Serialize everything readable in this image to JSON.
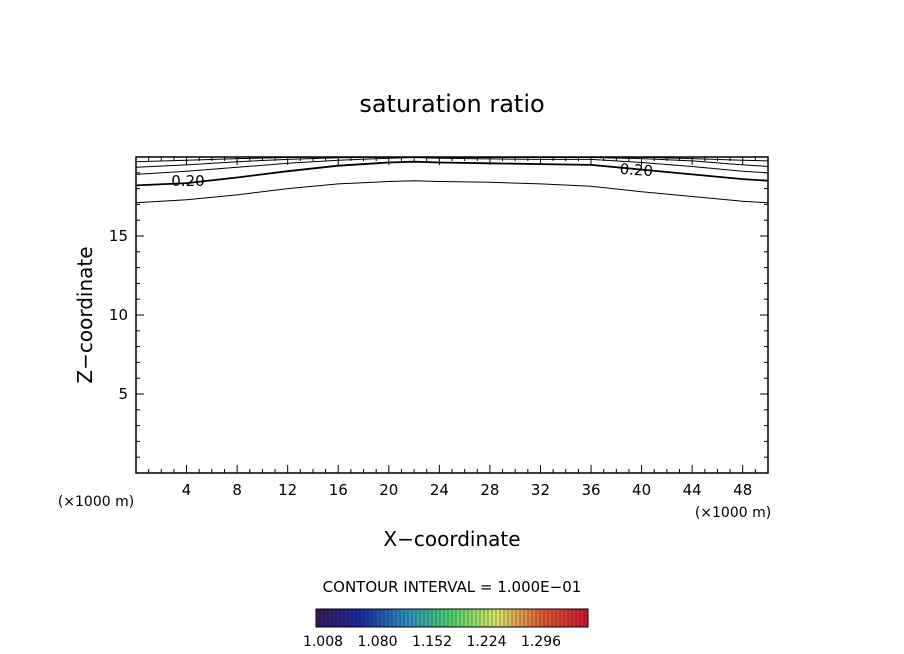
{
  "chart_data": {
    "type": "contour",
    "title": "saturation ratio",
    "xlabel": "X−coordinate",
    "ylabel": "Z−coordinate",
    "x_unit_left": "(×1000 m)",
    "x_unit_right": "(×1000 m)",
    "xlim": [
      0,
      50
    ],
    "ylim": [
      0,
      20
    ],
    "x_ticks": [
      "4",
      "8",
      "12",
      "16",
      "20",
      "24",
      "28",
      "32",
      "36",
      "40",
      "44",
      "48"
    ],
    "y_ticks": [
      "5",
      "10",
      "15"
    ],
    "contour_interval_text": "CONTOUR INTERVAL = 1.000E−01",
    "contour_labels": [
      "0.20",
      "0.20"
    ],
    "contours": [
      {
        "level": 0.1,
        "x": [
          0,
          4,
          8,
          12,
          16,
          20,
          22,
          24,
          28,
          32,
          36,
          40,
          44,
          48,
          50
        ],
        "z": [
          17.1,
          17.3,
          17.6,
          18.0,
          18.3,
          18.45,
          18.5,
          18.45,
          18.4,
          18.3,
          18.15,
          17.8,
          17.5,
          17.2,
          17.1
        ]
      },
      {
        "level": 0.2,
        "x": [
          0,
          4,
          8,
          12,
          16,
          20,
          22,
          24,
          28,
          32,
          36,
          40,
          44,
          48,
          50
        ],
        "z": [
          18.2,
          18.35,
          18.7,
          19.1,
          19.45,
          19.65,
          19.7,
          19.65,
          19.6,
          19.55,
          19.5,
          19.2,
          18.9,
          18.6,
          18.5
        ]
      },
      {
        "level": 0.3,
        "x": [
          0,
          4,
          8,
          12,
          16,
          20,
          22,
          24,
          28,
          32,
          36,
          40,
          44,
          48,
          50
        ],
        "z": [
          18.9,
          19.1,
          19.35,
          19.6,
          19.8,
          19.92,
          19.97,
          19.92,
          19.88,
          19.85,
          19.85,
          19.65,
          19.4,
          19.1,
          19.0
        ]
      },
      {
        "level": 0.4,
        "x": [
          0,
          4,
          8,
          12,
          16,
          20,
          22,
          24,
          28,
          32,
          36,
          40,
          44,
          48,
          50
        ],
        "z": [
          19.35,
          19.5,
          19.7,
          19.85,
          19.95,
          19.99,
          20.0,
          19.99,
          19.97,
          19.97,
          19.97,
          19.9,
          19.75,
          19.5,
          19.4
        ]
      },
      {
        "level": 0.5,
        "x": [
          0,
          4,
          8,
          12,
          16,
          20,
          22,
          24,
          28,
          32,
          36,
          40,
          44,
          48,
          50
        ],
        "z": [
          19.7,
          19.8,
          19.9,
          19.97,
          20.0,
          20.0,
          20.0,
          20.0,
          20.0,
          20.0,
          20.0,
          19.98,
          19.9,
          19.8,
          19.75
        ]
      }
    ],
    "colorbar": {
      "tick_labels": [
        "1.008",
        "1.080",
        "1.152",
        "1.224",
        "1.296"
      ],
      "colors": [
        "#3a1a5a",
        "#1a2aa0",
        "#2f8fbf",
        "#4fd26a",
        "#d8e46a",
        "#e05a36",
        "#c8182a"
      ]
    }
  }
}
